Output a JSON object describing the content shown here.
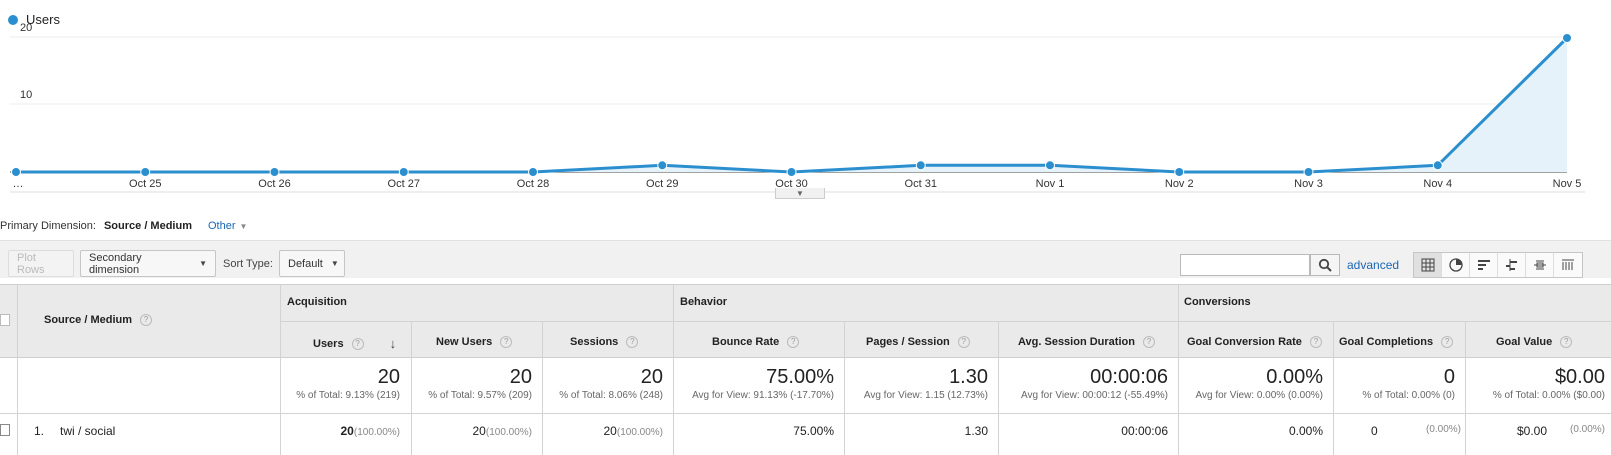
{
  "legend": {
    "series_name": "Users",
    "color": "#2b8fcf"
  },
  "chart_data": {
    "type": "area",
    "categories": [
      "…",
      "Oct 25",
      "Oct 26",
      "Oct 27",
      "Oct 28",
      "Oct 29",
      "Oct 30",
      "Oct 31",
      "Nov 1",
      "Nov 2",
      "Nov 3",
      "Nov 4",
      "Nov 5"
    ],
    "series": [
      {
        "name": "Users",
        "values": [
          0,
          0,
          0,
          0,
          0,
          1,
          0,
          1,
          1,
          0,
          0,
          1,
          20
        ]
      }
    ],
    "yticks": [
      "20",
      "10"
    ],
    "ylim": [
      0,
      20
    ],
    "grid": true,
    "legend_position": "top-left"
  },
  "primary_dimension": {
    "label": "Primary Dimension:",
    "value": "Source / Medium",
    "other": "Other"
  },
  "toolbar": {
    "plot_rows": "Plot Rows",
    "secondary_dimension": "Secondary dimension",
    "sort_type_label": "Sort Type:",
    "sort_type_value": "Default",
    "advanced": "advanced"
  },
  "table": {
    "dimension_header": "Source / Medium",
    "groups": {
      "acquisition": "Acquisition",
      "behavior": "Behavior",
      "conversions": "Conversions"
    },
    "columns": {
      "users": "Users",
      "new_users": "New Users",
      "sessions": "Sessions",
      "bounce_rate": "Bounce Rate",
      "pages_session": "Pages / Session",
      "avg_duration": "Avg. Session Duration",
      "goal_conv_rate": "Goal Conversion Rate",
      "goal_completions": "Goal Completions",
      "goal_value": "Goal Value"
    },
    "totals": {
      "users": {
        "value": "20",
        "sub": "% of Total: 9.13% (219)"
      },
      "new_users": {
        "value": "20",
        "sub": "% of Total: 9.57% (209)"
      },
      "sessions": {
        "value": "20",
        "sub": "% of Total: 8.06% (248)"
      },
      "bounce_rate": {
        "value": "75.00%",
        "sub": "Avg for View: 91.13% (-17.70%)"
      },
      "pages_session": {
        "value": "1.30",
        "sub": "Avg for View: 1.15 (12.73%)"
      },
      "avg_duration": {
        "value": "00:00:06",
        "sub": "Avg for View: 00:00:12 (-55.49%)"
      },
      "goal_conv_rate": {
        "value": "0.00%",
        "sub": "Avg for View: 0.00% (0.00%)"
      },
      "goal_completions": {
        "value": "0",
        "sub": "% of Total: 0.00% (0)"
      },
      "goal_value": {
        "value": "$0.00",
        "sub": "% of Total: 0.00% ($0.00)"
      }
    },
    "rows": [
      {
        "index": "1.",
        "source": "twi / social",
        "users": "20",
        "users_pct": "(100.00%)",
        "new_users": "20",
        "new_users_pct": "(100.00%)",
        "sessions": "20",
        "sessions_pct": "(100.00%)",
        "bounce_rate": "75.00%",
        "pages_session": "1.30",
        "avg_duration": "00:00:06",
        "goal_conv_rate": "0.00%",
        "goal_completions": "0",
        "goal_completions_pct": "(0.00%)",
        "goal_value": "$0.00",
        "goal_value_pct": "(0.00%)"
      }
    ]
  }
}
